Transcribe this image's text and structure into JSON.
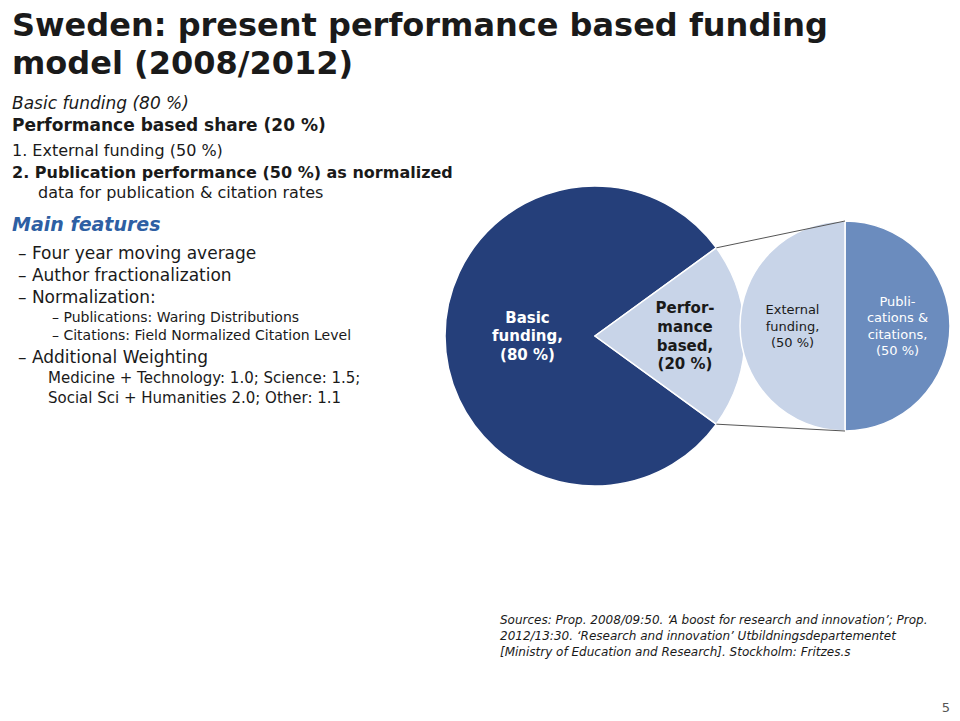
{
  "chart_data": [
    {
      "type": "pie",
      "title": "Sweden: present performance based funding model (2008/2012)",
      "values": [
        80,
        20
      ],
      "colors": [
        "#253f7a",
        "#c8d4e8"
      ],
      "value_labels": [
        "Basic\nfunding,\n(80 %)",
        "Perfor-\nmance\nbased,\n(20 %)"
      ],
      "data_labels": true,
      "annotations": [
        "Basic funding (80 %)",
        "Performance based share (20 %)",
        "1. External funding (50 %)",
        "2. Publication performance (50 %) as normalized",
        "data for publication & citation rates",
        "Main features",
        "– Four year moving average",
        "– Author fractionalization",
        "– Normalization:",
        "– Publications: Waring Distributions",
        "– Citations: Field Normalized Citation Level",
        "– Additional Weighting",
        "Medicine + Technology: 1.0; Science: 1.5;",
        "Social Sci + Humanities 2.0; Other: 1.1",
        "Sources: Prop. 2008/09:50. ‘A boost for research and innovation’; Prop. 2012/13:30. ‘Research and innovation’ Utbildningsdepartementet [Ministry of Education and Research]. Stockholm: Fritzes.s",
        "5"
      ]
    },
    {
      "type": "pie",
      "values": [
        50,
        50
      ],
      "colors": [
        "#6b8cbe",
        "#c8d4e8"
      ],
      "value_labels": [
        "Publi-\ncations &\ncitations,\n(50 %)",
        "External\nfunding,\n(50 %)"
      ],
      "data_labels": true
    }
  ]
}
